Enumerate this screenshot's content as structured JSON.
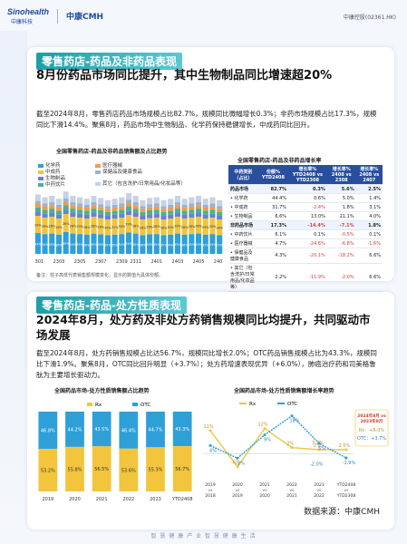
{
  "header": {
    "logo_en": "Sinohealth",
    "logo_en_sub": "中康科技",
    "logo_cn": "中康CMH",
    "stock": "中康控股(02361.HK)"
  },
  "section1": {
    "title": "零售药店-药品及非药品表现",
    "headline": "8月份药品市场同比提升，其中生物制品同比增速超20%",
    "paragraph": "截至2024年8月，零售药店药品市场规模占比82.7%，规模同比微幅增长0.3%；非药市场规模占比17.3%，规模同比下滑14.4%。聚焦8月，药品市场中生物制品、化学药保持稳健增长，中成药同比回升。",
    "note": "备注：柱子高低代表销售额规模变化，显示的数值为具体份额。"
  },
  "chart_data": [
    {
      "type": "bar",
      "title": "全国零售药店-药品及非药品销售额及占比趋势",
      "series_names": [
        "化学药",
        "中成药",
        "生物制品",
        "中药饮片",
        "医疗器械",
        "保健品及健康食品",
        "其它（包含洗护/日常用品/化妆品等）"
      ],
      "colors": [
        "#2f9fd8",
        "#f2c53d",
        "#6b7fd6",
        "#49b38a",
        "#f59a4a",
        "#8fb4e0",
        "#c8d2e3"
      ],
      "categories": [
        "2301",
        "",
        "",
        "",
        "",
        "2305",
        "",
        "",
        "",
        "",
        "2309",
        "",
        "",
        "",
        "",
        "2401",
        "",
        "",
        "",
        "",
        "2405",
        "",
        "",
        "",
        "2407",
        "",
        ""
      ],
      "tick_labels": [
        "2301",
        "2303",
        "2305",
        "2307",
        "2309",
        "2311",
        "2401",
        "2403",
        "2405",
        "2407"
      ],
      "label_values": {
        "化学药": [
          "34%",
          "34%",
          "35%",
          "36%",
          "35%",
          "34%",
          "35%",
          "36%",
          "35%",
          "36%",
          "35%",
          "35%",
          "34%",
          "34%",
          "35%",
          "36%",
          "35%",
          "35%",
          "35%",
          "34%",
          "35%",
          "36%",
          "35%",
          "35%",
          "35%",
          "34%",
          "35%"
        ],
        "中成药": [
          "29%",
          "29%",
          "28%",
          "29%",
          "28%",
          "28%",
          "29%",
          "28%",
          "28%",
          "28%",
          "30%",
          "31%",
          "30%",
          "29%",
          "28%",
          "28%",
          "28%",
          "28%",
          "30%",
          "30%",
          "29%",
          "28%",
          "28%",
          "28%",
          "29%",
          "30%",
          "28%"
        ]
      },
      "relative_heights": [
        0.82,
        0.78,
        0.8,
        0.76,
        0.86,
        0.8,
        0.78,
        0.76,
        0.8,
        0.77,
        0.74,
        0.76,
        0.78,
        0.84,
        0.8,
        0.74,
        0.77,
        0.78,
        0.74,
        0.76,
        0.8,
        0.76,
        0.78,
        0.8,
        0.76,
        0.78,
        0.74
      ]
    },
    {
      "type": "table",
      "title": "全国零售药店-药品及非药品增长率",
      "columns": [
        "中药类别（占比）",
        "份额%",
        "增长率%",
        "增长率%",
        "增长率%"
      ],
      "column_sub": [
        "",
        "YTD2408",
        "YTD2408 vs YTD2308",
        "2408 vs 2308",
        "2408 vs 2407"
      ],
      "rows": [
        {
          "name": "药品市场",
          "v": [
            "82.7%",
            "0.3%",
            "5.6%",
            "2.5%"
          ],
          "group": true
        },
        {
          "name": "化学药",
          "v": [
            "44.4%",
            "0.6%",
            "5.0%",
            "1.4%"
          ]
        },
        {
          "name": "中成药",
          "v": [
            "31.7%",
            "-2.4%",
            "1.8%",
            "3.1%"
          ]
        },
        {
          "name": "生物制品",
          "v": [
            "6.6%",
            "13.0%",
            "21.1%",
            "4.0%"
          ]
        },
        {
          "name": "非药品市场",
          "v": [
            "17.3%",
            "-14.4%",
            "-7.1%",
            "1.8%"
          ],
          "group": true
        },
        {
          "name": "中药饮片",
          "v": [
            "6.1%",
            "0.1%",
            "-0.5%",
            "0.1%"
          ]
        },
        {
          "name": "医疗器械",
          "v": [
            "4.7%",
            "-24.6%",
            "-6.8%",
            "-1.6%"
          ]
        },
        {
          "name": "保健品及健康食品",
          "v": [
            "4.3%",
            "-20.1%",
            "-18.2%",
            "6.6%"
          ]
        },
        {
          "name": "其它（包含洗护/日常用品/化妆品等）",
          "v": [
            "2.2%",
            "-11.9%",
            "-2.0%",
            "6.6%"
          ]
        }
      ]
    },
    {
      "type": "bar",
      "title": "全国药品市场-处方性质销售额占比趋势",
      "categories": [
        "2019",
        "2020",
        "2021",
        "2022",
        "2023",
        "YTD2408"
      ],
      "series": [
        {
          "name": "Rx",
          "values": [
            53.2,
            55.8,
            56.5,
            53.6,
            55.3,
            56.7
          ]
        },
        {
          "name": "OTC",
          "values": [
            46.8,
            44.2,
            43.5,
            46.4,
            44.7,
            43.3
          ]
        }
      ],
      "value_labels_rx": [
        "53.2%",
        "55.8%",
        "56.5%",
        "53.6%",
        "55.3%",
        "56.7%"
      ],
      "value_labels_otc": [
        "46.8%",
        "44.2%",
        "43.5%",
        "46.4%",
        "44.7%",
        "43.3%"
      ],
      "ylim": [
        0,
        100
      ],
      "colors": {
        "Rx": "#f2c53d",
        "OTC": "#2f9fd8"
      }
    },
    {
      "type": "line",
      "title": "全国药品市场-处方性质销售额增长率趋势",
      "categories": [
        "2019 vs 2018",
        "2020 vs 2019",
        "2021 vs 2020",
        "2022 vs 2021",
        "2023 vs 2022",
        "YTD2408 vs YTD2308"
      ],
      "series": [
        {
          "name": "Rx",
          "values": [
            11,
            -6,
            12,
            3,
            2,
            2.0
          ]
        },
        {
          "name": "OTC",
          "values": [
            4,
            -2,
            9,
            18,
            5,
            -1.9
          ]
        }
      ],
      "labels_rx": [
        "11%",
        "-6%",
        "12%",
        "3%",
        "2%",
        "2.0%"
      ],
      "labels_otc": [
        "4%",
        "-2%",
        "9%",
        "18%",
        "5%",
        "-1.9%"
      ],
      "extra_labels": [
        "3.7%",
        "-2.0%"
      ],
      "side_box_title": "2024年8月 vs 2023年8月",
      "side_box_rx": "Rx：+6.0%",
      "side_box_otc": "OTC：+3.7%",
      "ylim": [
        -10,
        20
      ],
      "colors": {
        "Rx": "#f2c53d",
        "OTC": "#2f9fd8"
      }
    }
  ],
  "section2": {
    "title": "零售药店-药品-处方性质表现",
    "headline": "2024年8月，处方药及非处方药销售规模同比均提升，共同驱动市场发展",
    "paragraph": "截至2024年8月，处方药销售规模占比达56.7%，规模同比增长2.0%；OTC药品销售规模占比为43.3%，规模同比下滑1.9%。聚焦8月，OTC同比回升明显（+3.7%）；处方药增速表现优异（+6.0%），肺癌治疗药和司美格鲁肽为主要增长驱动力。",
    "source": "数据来源：中康CMH"
  },
  "footer": "智 慧 健 康 产 业   智 慧 健 康 生 活"
}
